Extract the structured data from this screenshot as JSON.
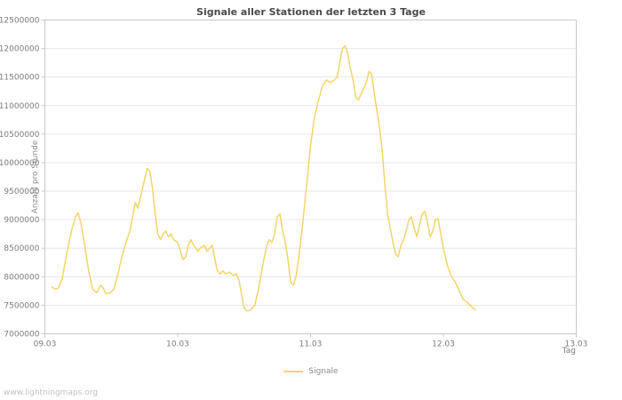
{
  "title": "Signale aller Stationen der letzten 3 Tage",
  "watermark": "www.lightningmaps.org",
  "legend": {
    "items": [
      {
        "label": "Signale",
        "color": "#f3d46a"
      }
    ]
  },
  "chart_data": {
    "type": "line",
    "title": "Signale aller Stationen der letzten 3 Tage",
    "xlabel": "Tag",
    "ylabel": "Anzahl pro Stunde",
    "x_tick_labels": [
      "09.03",
      "10.03",
      "11.03",
      "12.03",
      "13.03"
    ],
    "x_tick_values": [
      0,
      1,
      2,
      3,
      4
    ],
    "y_ticks": [
      7000000,
      7500000,
      8000000,
      8500000,
      9000000,
      9500000,
      10000000,
      10500000,
      11000000,
      11500000,
      12000000,
      12500000
    ],
    "xlim": [
      0,
      4
    ],
    "ylim": [
      7000000,
      12500000
    ],
    "grid": "horizontal",
    "legend_position": "bottom-center",
    "line_color": "#f3d46a",
    "grid_color": "#e6e6e6",
    "axis_color": "#c8c8c8",
    "tick_label_color": "#7a7a7a",
    "series": [
      {
        "name": "Signale",
        "x": [
          0.05,
          0.08,
          0.1,
          0.13,
          0.16,
          0.2,
          0.23,
          0.25,
          0.27,
          0.3,
          0.33,
          0.36,
          0.39,
          0.42,
          0.44,
          0.46,
          0.49,
          0.52,
          0.55,
          0.58,
          0.61,
          0.64,
          0.66,
          0.68,
          0.7,
          0.72,
          0.75,
          0.77,
          0.79,
          0.81,
          0.83,
          0.85,
          0.87,
          0.89,
          0.91,
          0.93,
          0.95,
          0.97,
          1.0,
          1.02,
          1.04,
          1.06,
          1.08,
          1.1,
          1.12,
          1.15,
          1.17,
          1.2,
          1.22,
          1.24,
          1.26,
          1.28,
          1.3,
          1.32,
          1.34,
          1.36,
          1.39,
          1.42,
          1.44,
          1.46,
          1.48,
          1.5,
          1.52,
          1.55,
          1.58,
          1.61,
          1.64,
          1.67,
          1.69,
          1.71,
          1.73,
          1.75,
          1.77,
          1.79,
          1.81,
          1.83,
          1.85,
          1.87,
          1.89,
          1.91,
          1.94,
          1.97,
          2.0,
          2.03,
          2.06,
          2.09,
          2.12,
          2.15,
          2.18,
          2.2,
          2.22,
          2.24,
          2.26,
          2.28,
          2.3,
          2.32,
          2.34,
          2.36,
          2.38,
          2.4,
          2.42,
          2.44,
          2.46,
          2.48,
          2.5,
          2.52,
          2.54,
          2.56,
          2.58,
          2.6,
          2.62,
          2.64,
          2.66,
          2.68,
          2.7,
          2.72,
          2.74,
          2.76,
          2.78,
          2.8,
          2.82,
          2.84,
          2.86,
          2.88,
          2.9,
          2.92,
          2.94,
          2.96,
          2.98,
          3.0,
          3.03,
          3.06,
          3.09,
          3.12,
          3.15,
          3.18,
          3.21,
          3.24
        ],
        "y": [
          7820000,
          7780000,
          7800000,
          7950000,
          8350000,
          8800000,
          9050000,
          9120000,
          8950000,
          8550000,
          8100000,
          7780000,
          7720000,
          7850000,
          7800000,
          7700000,
          7720000,
          7780000,
          8050000,
          8350000,
          8600000,
          8800000,
          9050000,
          9300000,
          9200000,
          9400000,
          9700000,
          9900000,
          9850000,
          9550000,
          9100000,
          8750000,
          8650000,
          8750000,
          8800000,
          8700000,
          8750000,
          8650000,
          8600000,
          8450000,
          8300000,
          8350000,
          8550000,
          8650000,
          8550000,
          8450000,
          8500000,
          8550000,
          8450000,
          8500000,
          8550000,
          8300000,
          8100000,
          8050000,
          8100000,
          8050000,
          8080000,
          8020000,
          8050000,
          7950000,
          7700000,
          7450000,
          7400000,
          7420000,
          7500000,
          7800000,
          8200000,
          8550000,
          8650000,
          8600000,
          8750000,
          9050000,
          9100000,
          8800000,
          8600000,
          8300000,
          7900000,
          7850000,
          8000000,
          8300000,
          8900000,
          9600000,
          10300000,
          10800000,
          11100000,
          11350000,
          11450000,
          11400000,
          11450000,
          11500000,
          11750000,
          12000000,
          12050000,
          11900000,
          11650000,
          11450000,
          11150000,
          11100000,
          11200000,
          11300000,
          11400000,
          11600000,
          11550000,
          11200000,
          10900000,
          10600000,
          10200000,
          9600000,
          9100000,
          8850000,
          8600000,
          8400000,
          8350000,
          8550000,
          8650000,
          8800000,
          9000000,
          9050000,
          8850000,
          8700000,
          8900000,
          9100000,
          9150000,
          8950000,
          8700000,
          8800000,
          9000000,
          9020000,
          8750000,
          8500000,
          8200000,
          8000000,
          7900000,
          7750000,
          7600000,
          7550000,
          7480000,
          7420000
        ]
      }
    ]
  }
}
